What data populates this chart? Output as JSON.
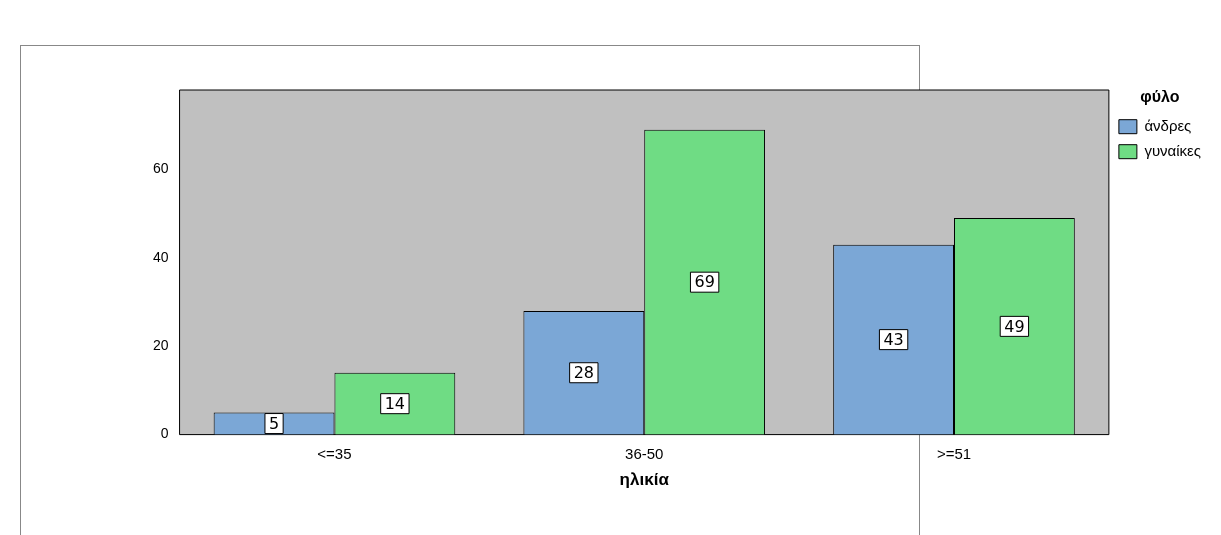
{
  "chart_data": {
    "type": "bar",
    "xlabel": "ηλικία",
    "legend_title": "φύλο",
    "categories": [
      "<=35",
      "36-50",
      ">=51"
    ],
    "series": [
      {
        "name": "άνδρες",
        "color": "#7ba7d6",
        "values": [
          5,
          28,
          43
        ]
      },
      {
        "name": "γυναίκες",
        "color": "#6fdc84",
        "values": [
          14,
          69,
          49
        ]
      }
    ],
    "ylim": [
      0,
      78
    ],
    "yticks": [
      0,
      20,
      40,
      60
    ],
    "grid": false,
    "legend": "top right",
    "data_labels": true
  }
}
